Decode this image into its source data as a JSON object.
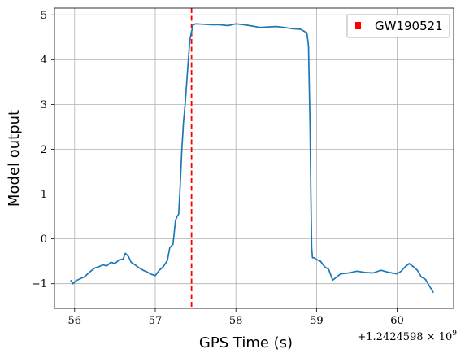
{
  "chart_data": {
    "type": "line",
    "xlabel": "GPS Time (s)",
    "ylabel": "Model output",
    "x_offset_label": "+1.2424598 × 10^9",
    "x_offset_base": "+1.2424598 × 10",
    "x_offset_exp": "9",
    "xlim": [
      55.75,
      60.7
    ],
    "ylim": [
      -1.55,
      5.15
    ],
    "x_ticks": [
      56,
      57,
      58,
      59,
      60
    ],
    "y_ticks": [
      -1,
      0,
      1,
      2,
      3,
      4,
      5
    ],
    "x_tick_labels": [
      "56",
      "57",
      "58",
      "59",
      "60"
    ],
    "y_tick_labels": [
      "−1",
      "0",
      "1",
      "2",
      "3",
      "4",
      "5"
    ],
    "grid": true,
    "legend": {
      "placement": "top-right",
      "entries": [
        {
          "name": "GW190521",
          "color": "#ff0000",
          "marker": "square"
        }
      ]
    },
    "event_line": {
      "x": 57.45,
      "color": "#ff0000",
      "style": "dashed"
    },
    "series": [
      {
        "color": "#1f77b4",
        "x": [
          55.95,
          55.98,
          56.02,
          56.08,
          56.12,
          56.15,
          56.2,
          56.25,
          56.3,
          56.35,
          56.4,
          56.45,
          56.5,
          56.55,
          56.6,
          56.63,
          56.67,
          56.7,
          56.75,
          56.8,
          56.85,
          56.9,
          56.95,
          57.0,
          57.05,
          57.1,
          57.15,
          57.18,
          57.22,
          57.25,
          57.27,
          57.29,
          57.31,
          57.33,
          57.35,
          57.37,
          57.39,
          57.41,
          57.43,
          57.45,
          57.47,
          57.5,
          57.6,
          57.7,
          57.8,
          57.9,
          58.0,
          58.1,
          58.2,
          58.3,
          58.4,
          58.5,
          58.6,
          58.7,
          58.8,
          58.85,
          58.88,
          58.9,
          58.92,
          58.93,
          58.94,
          58.95,
          58.97,
          59.0,
          59.05,
          59.1,
          59.15,
          59.2,
          59.25,
          59.3,
          59.4,
          59.5,
          59.6,
          59.7,
          59.8,
          59.9,
          60.0,
          60.05,
          60.1,
          60.15,
          60.2,
          60.25,
          60.3,
          60.35,
          60.4,
          60.45
        ],
        "y": [
          -0.92,
          -1.0,
          -0.93,
          -0.88,
          -0.85,
          -0.8,
          -0.72,
          -0.65,
          -0.62,
          -0.58,
          -0.6,
          -0.52,
          -0.55,
          -0.47,
          -0.45,
          -0.32,
          -0.4,
          -0.52,
          -0.58,
          -0.65,
          -0.7,
          -0.74,
          -0.79,
          -0.82,
          -0.7,
          -0.62,
          -0.48,
          -0.2,
          -0.12,
          0.4,
          0.5,
          0.55,
          1.2,
          2.0,
          2.6,
          3.0,
          3.5,
          4.0,
          4.45,
          4.62,
          4.78,
          4.8,
          4.79,
          4.78,
          4.78,
          4.76,
          4.8,
          4.78,
          4.75,
          4.72,
          4.73,
          4.74,
          4.72,
          4.69,
          4.68,
          4.63,
          4.6,
          4.3,
          2.5,
          1.0,
          -0.2,
          -0.42,
          -0.42,
          -0.46,
          -0.5,
          -0.62,
          -0.68,
          -0.92,
          -0.85,
          -0.78,
          -0.76,
          -0.72,
          -0.75,
          -0.76,
          -0.7,
          -0.75,
          -0.78,
          -0.72,
          -0.62,
          -0.55,
          -0.62,
          -0.7,
          -0.85,
          -0.9,
          -1.05,
          -1.2
        ]
      }
    ]
  }
}
